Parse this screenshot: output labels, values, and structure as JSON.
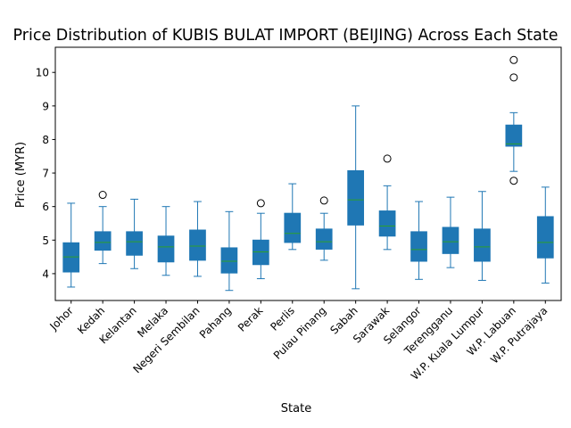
{
  "chart_data": {
    "type": "box",
    "title": "Price Distribution of KUBIS BULAT IMPORT (BEIJING) Across Each State",
    "xlabel": "State",
    "ylabel": "Price (MYR)",
    "ylim": [
      3.2,
      10.75
    ],
    "yticks": [
      4,
      5,
      6,
      7,
      8,
      9,
      10
    ],
    "grid": false,
    "colors": {
      "box_fill": "#1f77b4",
      "box_edge": "#1f77b4",
      "whisker": "#1f77b4",
      "median": "#2ca02c",
      "flier_edge": "#000000",
      "axes": "#000000"
    },
    "categories": [
      "Johor",
      "Kedah",
      "Kelantan",
      "Melaka",
      "Negeri Sembilan",
      "Pahang",
      "Perak",
      "Perlis",
      "Pulau Pinang",
      "Sabah",
      "Sarawak",
      "Selangor",
      "Terengganu",
      "W.P. Kuala Lumpur",
      "W.P. Labuan",
      "W.P. Putrajaya"
    ],
    "boxes": [
      {
        "state": "Johor",
        "whislo": 3.6,
        "q1": 4.05,
        "med": 4.5,
        "q3": 4.92,
        "whishi": 6.1,
        "fliers": []
      },
      {
        "state": "Kedah",
        "whislo": 4.3,
        "q1": 4.7,
        "med": 4.93,
        "q3": 5.25,
        "whishi": 6.0,
        "fliers": [
          6.35
        ]
      },
      {
        "state": "Kelantan",
        "whislo": 4.15,
        "q1": 4.55,
        "med": 4.95,
        "q3": 5.25,
        "whishi": 6.22,
        "fliers": []
      },
      {
        "state": "Melaka",
        "whislo": 3.95,
        "q1": 4.35,
        "med": 4.8,
        "q3": 5.12,
        "whishi": 6.0,
        "fliers": []
      },
      {
        "state": "Negeri Sembilan",
        "whislo": 3.92,
        "q1": 4.4,
        "med": 4.82,
        "q3": 5.3,
        "whishi": 6.15,
        "fliers": []
      },
      {
        "state": "Pahang",
        "whislo": 3.5,
        "q1": 4.02,
        "med": 4.37,
        "q3": 4.77,
        "whishi": 5.85,
        "fliers": []
      },
      {
        "state": "Perak",
        "whislo": 3.85,
        "q1": 4.27,
        "med": 4.65,
        "q3": 5.0,
        "whishi": 5.8,
        "fliers": [
          6.1
        ]
      },
      {
        "state": "Perlis",
        "whislo": 4.72,
        "q1": 4.93,
        "med": 5.2,
        "q3": 5.8,
        "whishi": 6.68,
        "fliers": []
      },
      {
        "state": "Pulau Pinang",
        "whislo": 4.4,
        "q1": 4.73,
        "med": 4.95,
        "q3": 5.33,
        "whishi": 5.8,
        "fliers": [
          6.18
        ]
      },
      {
        "state": "Sabah",
        "whislo": 3.55,
        "q1": 5.45,
        "med": 6.2,
        "q3": 7.07,
        "whishi": 9.0,
        "fliers": []
      },
      {
        "state": "Sarawak",
        "whislo": 4.72,
        "q1": 5.12,
        "med": 5.42,
        "q3": 5.87,
        "whishi": 6.62,
        "fliers": [
          7.43
        ]
      },
      {
        "state": "Selangor",
        "whislo": 3.83,
        "q1": 4.37,
        "med": 4.72,
        "q3": 5.25,
        "whishi": 6.15,
        "fliers": []
      },
      {
        "state": "Terengganu",
        "whislo": 4.18,
        "q1": 4.6,
        "med": 4.95,
        "q3": 5.38,
        "whishi": 6.28,
        "fliers": []
      },
      {
        "state": "W.P. Kuala Lumpur",
        "whislo": 3.8,
        "q1": 4.37,
        "med": 4.8,
        "q3": 5.33,
        "whishi": 6.45,
        "fliers": []
      },
      {
        "state": "W.P. Labuan",
        "whislo": 7.05,
        "q1": 7.8,
        "med": 7.87,
        "q3": 8.43,
        "whishi": 8.8,
        "fliers": [
          6.77,
          9.85,
          10.37
        ]
      },
      {
        "state": "W.P. Putrajaya",
        "whislo": 3.72,
        "q1": 4.47,
        "med": 4.93,
        "q3": 5.7,
        "whishi": 6.58,
        "fliers": []
      }
    ]
  }
}
